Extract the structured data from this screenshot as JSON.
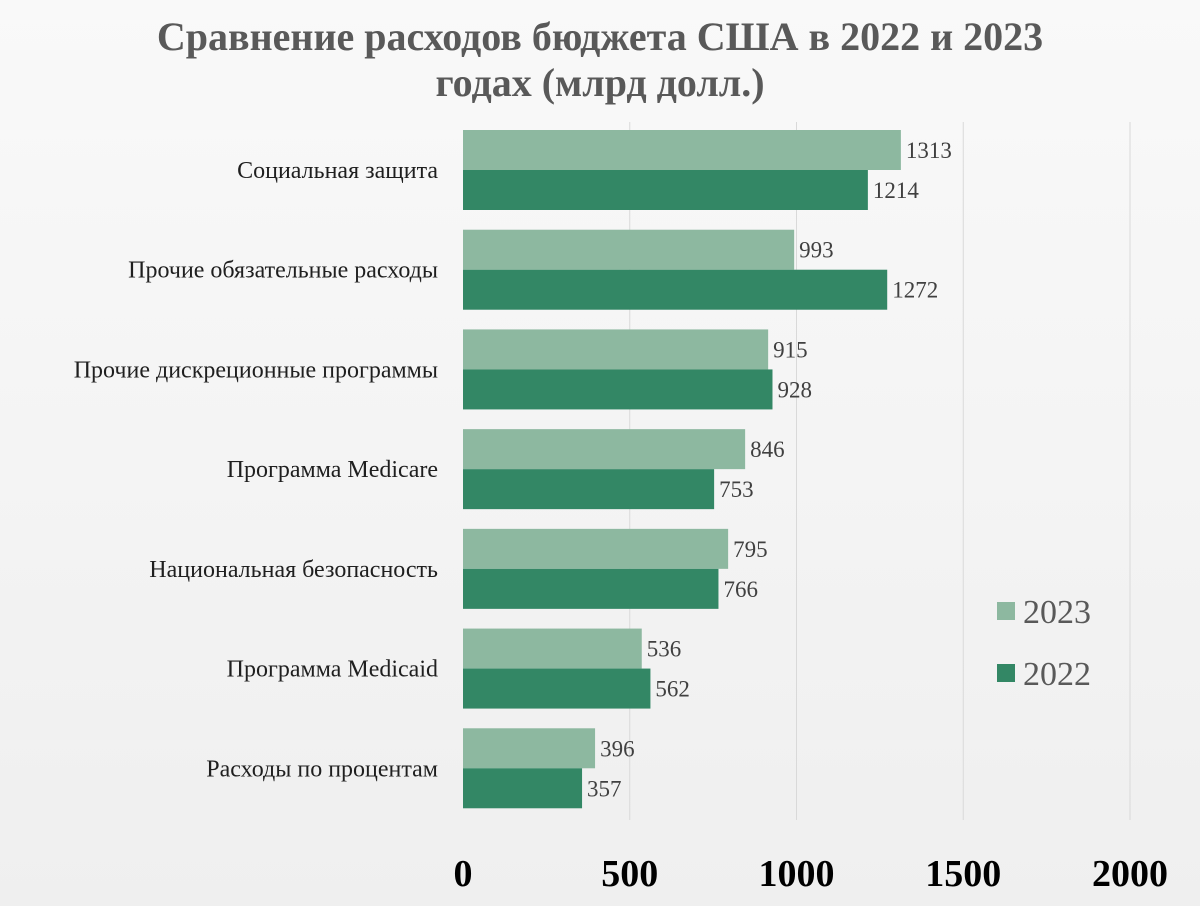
{
  "chart_data": {
    "type": "bar",
    "orientation": "horizontal",
    "title_lines": [
      "Сравнение расходов бюджета США в 2022 и 2023",
      "годах (млрд долл.)"
    ],
    "categories": [
      "Социальная защита",
      "Прочие обязательные расходы",
      "Прочие дискреционные программы",
      "Программа Medicare",
      "Национальная безопасность",
      "Программа Medicaid",
      "Расходы по процентам"
    ],
    "series": [
      {
        "name": "2023",
        "color": "#8db8a0",
        "values": [
          1313,
          993,
          915,
          846,
          795,
          536,
          396
        ]
      },
      {
        "name": "2022",
        "color": "#338765",
        "values": [
          1214,
          1272,
          928,
          753,
          766,
          562,
          357
        ]
      }
    ],
    "xlim": [
      0,
      2000
    ],
    "x_ticks": [
      0,
      500,
      1000,
      1500,
      2000
    ],
    "grid": true,
    "legend_position": "right",
    "data_labels": true
  }
}
